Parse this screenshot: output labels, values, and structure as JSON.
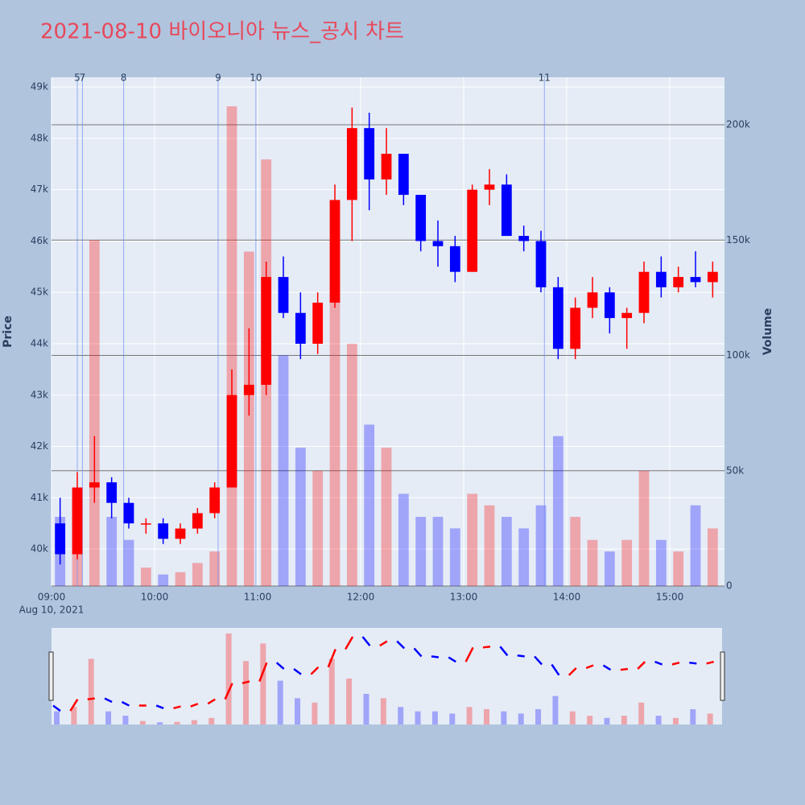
{
  "chart_data": {
    "type": "candlestick",
    "title": "2021-08-10 바이오니아 뉴스_공시 차트",
    "y_title": "Price",
    "y2_title": "Volume",
    "x_date_label": "Aug 10, 2021",
    "x": [
      "09:00",
      "09:10",
      "09:20",
      "09:30",
      "09:40",
      "09:50",
      "10:00",
      "10:10",
      "10:20",
      "10:30",
      "10:40",
      "10:50",
      "11:00",
      "11:10",
      "11:20",
      "11:30",
      "11:40",
      "11:50",
      "12:00",
      "12:10",
      "12:20",
      "12:30",
      "12:40",
      "12:50",
      "13:00",
      "13:10",
      "13:20",
      "13:30",
      "13:40",
      "13:50",
      "14:00",
      "14:10",
      "14:20",
      "14:30",
      "14:40",
      "14:50",
      "15:00",
      "15:10",
      "15:20"
    ],
    "open": [
      40500,
      39900,
      41200,
      41300,
      40900,
      40500,
      40500,
      40200,
      40400,
      40700,
      41200,
      43000,
      43200,
      45300,
      44600,
      44000,
      44800,
      46800,
      48200,
      47200,
      47700,
      46900,
      46000,
      45900,
      45400,
      47000,
      47100,
      46100,
      46000,
      45100,
      43900,
      44700,
      45000,
      44500,
      44600,
      45400,
      45100,
      45300,
      45200
    ],
    "high": [
      41000,
      41500,
      42200,
      41400,
      41000,
      40600,
      40600,
      40500,
      40800,
      41300,
      43500,
      44300,
      45600,
      45700,
      45000,
      45000,
      47100,
      48600,
      48500,
      48200,
      47700,
      46900,
      46400,
      46100,
      47100,
      47400,
      47300,
      46300,
      46200,
      45300,
      44900,
      45300,
      45100,
      44700,
      45600,
      45700,
      45500,
      45800,
      45600
    ],
    "low": [
      39700,
      39800,
      40900,
      40600,
      40400,
      40300,
      40100,
      40100,
      40300,
      40600,
      41200,
      42600,
      43000,
      44500,
      43700,
      43800,
      44700,
      46000,
      46600,
      46900,
      46700,
      45800,
      45500,
      45200,
      45400,
      46700,
      46100,
      45800,
      45000,
      43700,
      43700,
      44500,
      44200,
      43900,
      44400,
      44900,
      45000,
      45100,
      44900
    ],
    "close": [
      39900,
      41200,
      41300,
      40900,
      40500,
      40500,
      40200,
      40400,
      40700,
      41200,
      43000,
      43200,
      45300,
      44600,
      44000,
      44800,
      46800,
      48200,
      47200,
      47700,
      46900,
      46000,
      45900,
      45400,
      47000,
      47100,
      46100,
      46000,
      45100,
      43900,
      44700,
      45000,
      44500,
      44600,
      45400,
      45100,
      45300,
      45200,
      45400
    ],
    "volume": [
      30000,
      40000,
      150000,
      30000,
      20000,
      8000,
      5000,
      6000,
      10000,
      15000,
      208000,
      145000,
      185000,
      100000,
      60000,
      50000,
      150000,
      105000,
      70000,
      60000,
      40000,
      30000,
      30000,
      25000,
      40000,
      35000,
      30000,
      25000,
      35000,
      65000,
      30000,
      20000,
      15000,
      20000,
      50000,
      20000,
      15000,
      35000,
      25000
    ],
    "increasing_color": "#ff0000",
    "decreasing_color": "#0000ff",
    "news": [
      {
        "label": "5",
        "time": "09:15"
      },
      {
        "label": "7",
        "time": "09:18"
      },
      {
        "label": "8",
        "time": "09:42"
      },
      {
        "label": "9",
        "time": "10:37"
      },
      {
        "label": "10",
        "time": "10:59"
      },
      {
        "label": "11",
        "time": "13:47"
      }
    ],
    "xlim": [
      "09:00",
      "15:30"
    ],
    "xticks": [
      "09:00",
      "10:00",
      "11:00",
      "12:00",
      "13:00",
      "14:00",
      "15:00"
    ],
    "ylim": [
      39280,
      49190
    ],
    "yticks": [
      {
        "value": 40000,
        "label": "40k"
      },
      {
        "value": 41000,
        "label": "41k"
      },
      {
        "value": 42000,
        "label": "42k"
      },
      {
        "value": 43000,
        "label": "43k"
      },
      {
        "value": 44000,
        "label": "44k"
      },
      {
        "value": 45000,
        "label": "45k"
      },
      {
        "value": 46000,
        "label": "46k"
      },
      {
        "value": 47000,
        "label": "47k"
      },
      {
        "value": 48000,
        "label": "48k"
      },
      {
        "value": 49000,
        "label": "49k"
      }
    ],
    "y2lim": [
      0,
      220600
    ],
    "y2ticks": [
      0,
      {
        "value": 50000,
        "label": "50k"
      },
      {
        "value": 100000,
        "label": "100k"
      },
      {
        "value": 150000,
        "label": "150k"
      },
      {
        "value": 200000,
        "label": "200k"
      }
    ],
    "grid": true
  }
}
